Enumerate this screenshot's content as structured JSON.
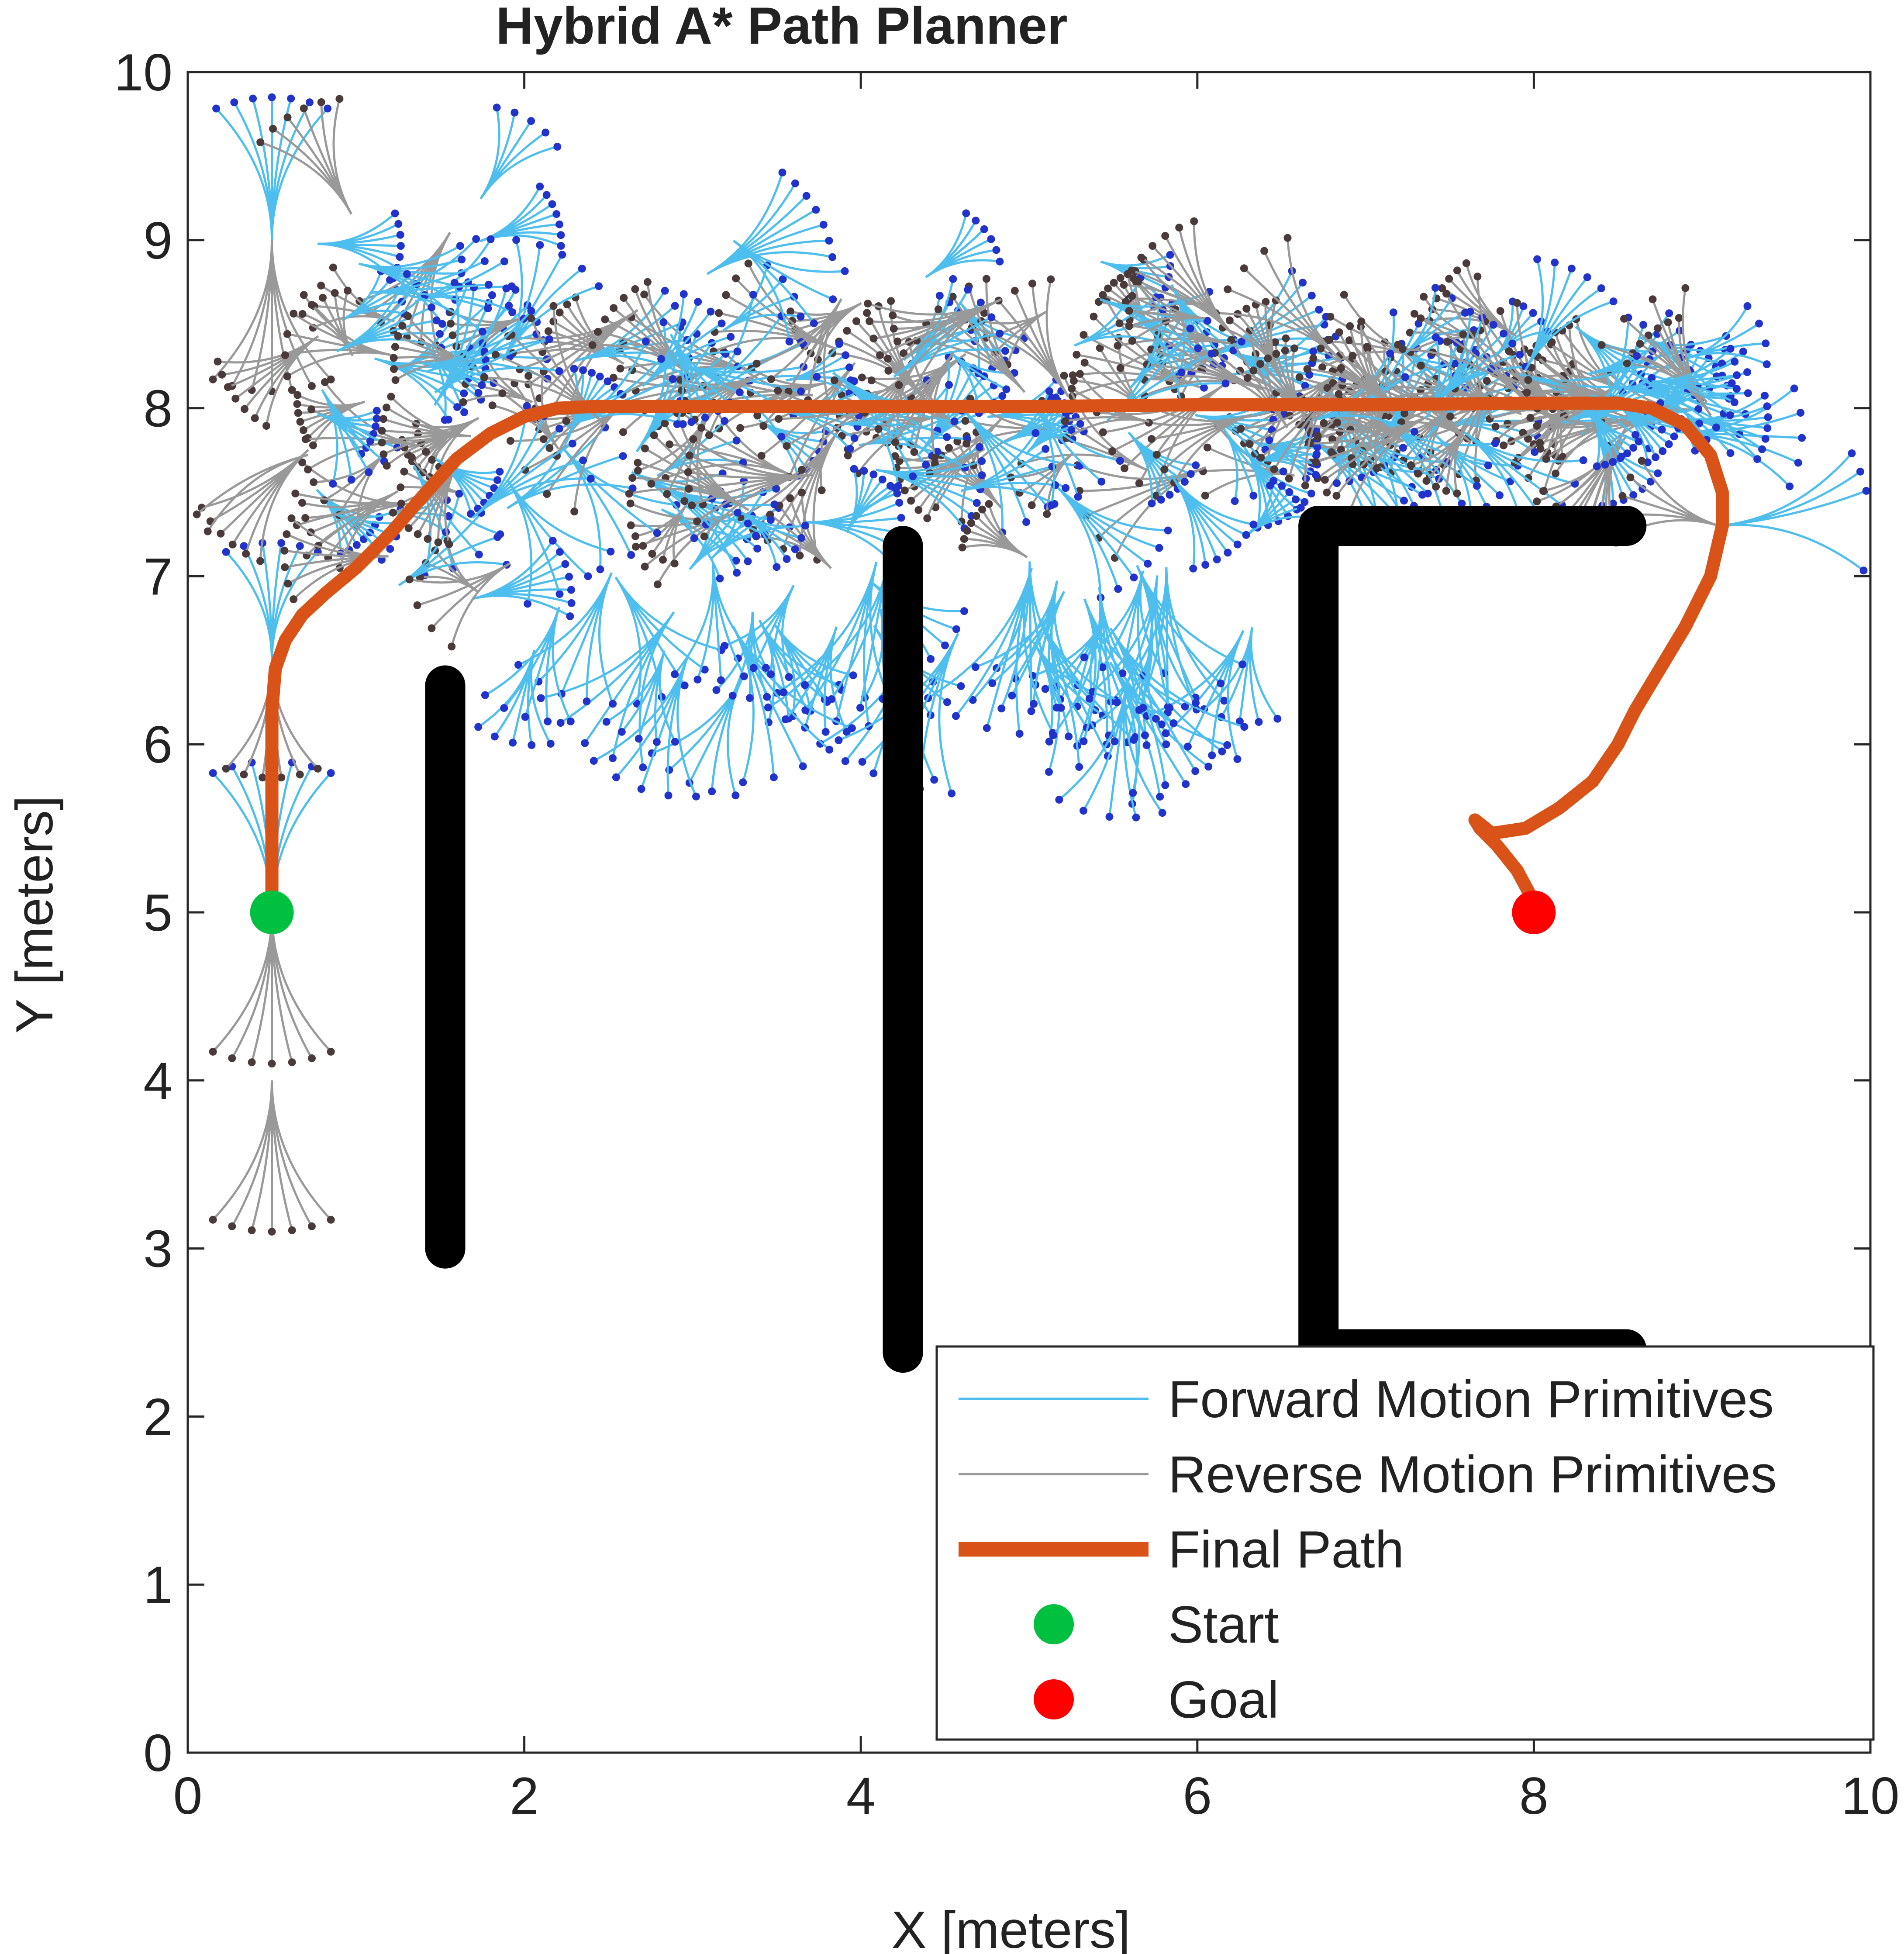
{
  "chart_data": {
    "type": "line",
    "title": "Hybrid A* Path Planner",
    "xlabel": "X [meters]",
    "ylabel": "Y [meters]",
    "xlim": [
      0,
      10
    ],
    "ylim": [
      0,
      10
    ],
    "xticks": [
      0,
      2,
      4,
      6,
      8,
      10
    ],
    "yticks": [
      0,
      1,
      2,
      3,
      4,
      5,
      6,
      7,
      8,
      9,
      10
    ],
    "grid": false,
    "legend_position": "bottom-right",
    "colors": {
      "forward": "#4DBEEE",
      "reverse": "#999999",
      "forward_node": "#2233CC",
      "reverse_node": "#4A3A3A",
      "path": "#D95319",
      "start": "#00C040",
      "goal": "#FF0000",
      "obstacle": "#000000"
    },
    "series": [
      {
        "name": "Forward Motion Primitives",
        "kind": "primitives"
      },
      {
        "name": "Reverse Motion Primitives",
        "kind": "primitives"
      },
      {
        "name": "Final Path",
        "kind": "path",
        "x": [
          0.5,
          0.5,
          0.52,
          0.58,
          0.68,
          0.82,
          1.0,
          1.2,
          1.4,
          1.6,
          1.8,
          2.0,
          2.2,
          2.4,
          3.0,
          4.0,
          5.0,
          6.0,
          7.0,
          8.0,
          8.5,
          8.7,
          8.9,
          9.05,
          9.12,
          9.12,
          9.05,
          8.9,
          8.75,
          8.6,
          8.5,
          8.35,
          8.15,
          7.95,
          7.75,
          7.65,
          7.68,
          7.78,
          7.9,
          7.97,
          8.0
        ],
        "y": [
          5.0,
          6.2,
          6.45,
          6.62,
          6.77,
          6.9,
          7.05,
          7.25,
          7.48,
          7.7,
          7.85,
          7.95,
          8.0,
          8.01,
          8.01,
          8.01,
          8.01,
          8.02,
          8.02,
          8.03,
          8.03,
          8.0,
          7.9,
          7.72,
          7.5,
          7.3,
          7.0,
          6.7,
          6.45,
          6.2,
          6.0,
          5.78,
          5.62,
          5.5,
          5.47,
          5.55,
          5.5,
          5.4,
          5.25,
          5.12,
          5.0
        ]
      },
      {
        "name": "Start",
        "kind": "marker",
        "x": [
          0.5
        ],
        "y": [
          5.0
        ]
      },
      {
        "name": "Goal",
        "kind": "marker",
        "x": [
          8.0
        ],
        "y": [
          5.0
        ]
      }
    ],
    "obstacles": [
      {
        "x": [
          1.53,
          1.53
        ],
        "y": [
          3.0,
          6.35
        ]
      },
      {
        "x": [
          4.25,
          4.25
        ],
        "y": [
          2.38,
          7.18
        ]
      },
      {
        "x": [
          6.72,
          6.72
        ],
        "y": [
          2.4,
          7.3
        ]
      },
      {
        "x": [
          6.72,
          8.55
        ],
        "y": [
          7.3,
          7.3
        ]
      },
      {
        "x": [
          6.72,
          8.55
        ],
        "y": [
          2.4,
          2.4
        ]
      }
    ]
  }
}
